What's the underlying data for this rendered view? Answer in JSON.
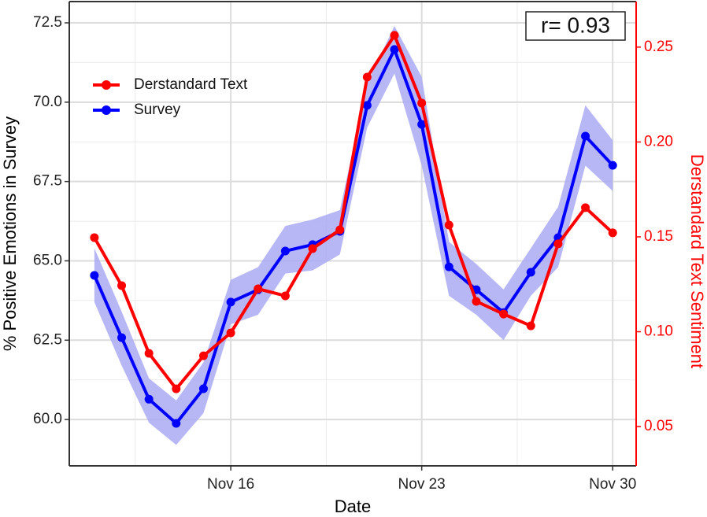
{
  "chart_data": {
    "type": "line",
    "x_label": "Date",
    "y_label": "% Positive Emotions in Survey",
    "y2_label": "Derstandard Text Sentiment",
    "annotation": "r= 0.93",
    "x": [
      11,
      12,
      13,
      14,
      15,
      16,
      17,
      18,
      19,
      20,
      21,
      22,
      23,
      24,
      25,
      26,
      27,
      28,
      29,
      30
    ],
    "xlim": [
      10.08,
      30.86
    ],
    "xticks": [
      {
        "value": 16,
        "label": "Nov 16"
      },
      {
        "value": 23,
        "label": "Nov 23"
      },
      {
        "value": 30,
        "label": "Nov 30"
      }
    ],
    "x_minor_ticks": [
      12.5,
      19.5,
      26.5
    ],
    "ylim": [
      58.54,
      73.17
    ],
    "yticks": [
      {
        "value": 60,
        "label": "60.0"
      },
      62.5,
      {
        "value": 65,
        "label": "65.0"
      },
      67.5,
      {
        "value": 70,
        "label": "70.0"
      },
      72.5
    ],
    "y_minor_ticks": [
      61.25,
      63.75,
      66.25,
      68.75,
      71.25
    ],
    "y2lim": [
      0.0293,
      0.274
    ],
    "y2ticks": [
      0.05,
      {
        "value": 0.1,
        "label": "0.10"
      },
      0.15,
      {
        "value": 0.2,
        "label": "0.20"
      },
      0.25
    ],
    "y2_color": "#ff0000",
    "grid": true,
    "legend": "top-left",
    "series": [
      {
        "name": "Derstandard Text",
        "color": "#ff0000",
        "axis": "y2",
        "values": [
          0.1496,
          0.1243,
          0.0886,
          0.0699,
          0.0873,
          0.0994,
          0.1226,
          0.1189,
          0.1438,
          0.1537,
          0.2342,
          0.2562,
          0.2205,
          0.1562,
          0.116,
          0.1093,
          0.1031,
          0.1463,
          0.1654,
          0.1521
        ]
      },
      {
        "name": "Survey",
        "color": "#0000ff",
        "axis": "y",
        "values": [
          64.54,
          62.58,
          60.64,
          59.88,
          60.97,
          63.7,
          64.09,
          65.31,
          65.51,
          65.93,
          69.9,
          71.66,
          69.3,
          64.81,
          64.09,
          63.37,
          64.64,
          65.73,
          68.93,
          68.01
        ],
        "band_color": "#aaaaf5",
        "lower": [
          63.7,
          61.7,
          59.9,
          59.2,
          60.2,
          63.0,
          63.3,
          64.6,
          64.7,
          65.2,
          69.2,
          70.9,
          68.0,
          63.9,
          63.3,
          62.5,
          63.9,
          64.8,
          68.0,
          67.2
        ],
        "upper": [
          65.4,
          63.4,
          61.3,
          60.6,
          61.8,
          64.4,
          64.8,
          66.1,
          66.3,
          66.6,
          70.6,
          72.4,
          70.8,
          65.6,
          64.9,
          64.1,
          65.4,
          66.7,
          69.9,
          68.8
        ]
      }
    ]
  }
}
